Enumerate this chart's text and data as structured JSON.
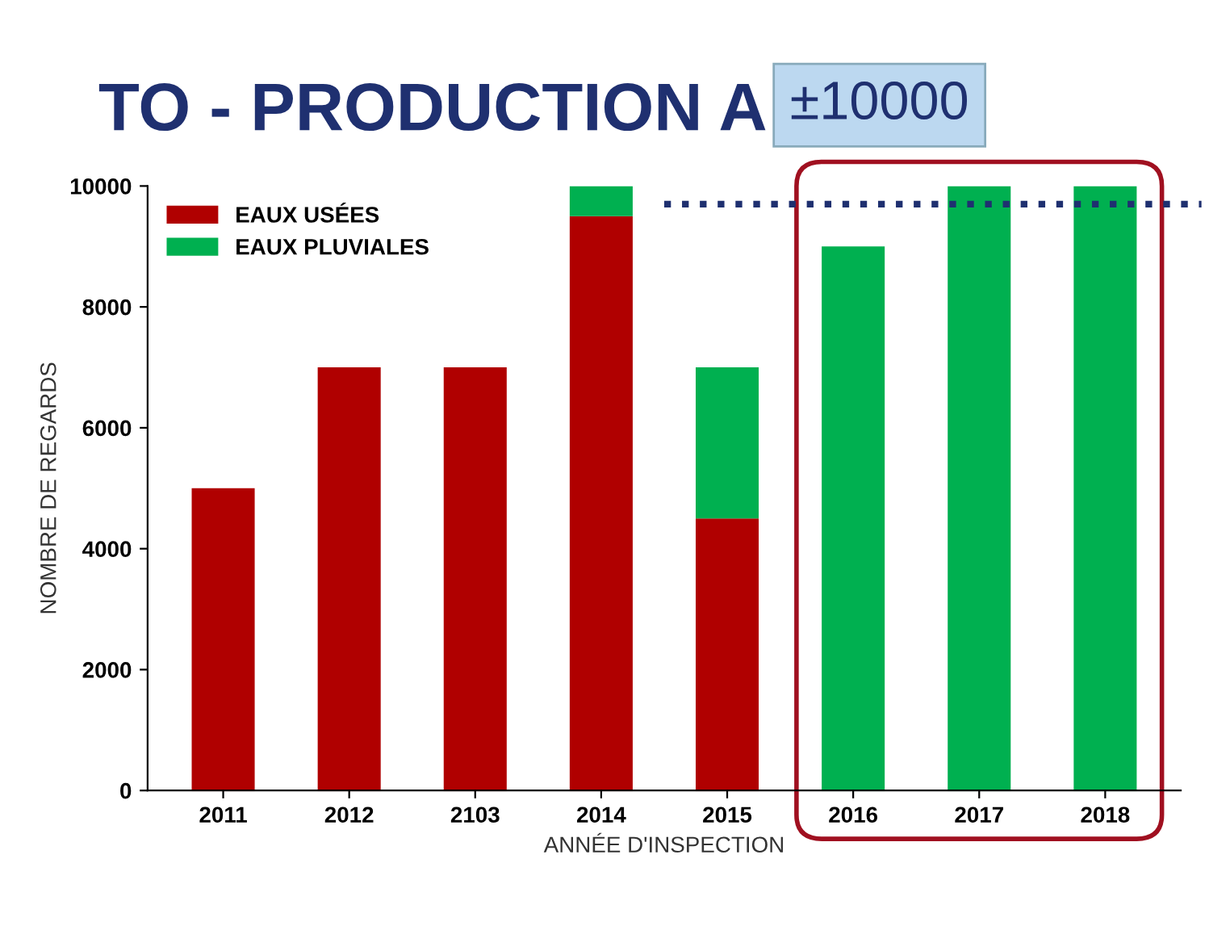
{
  "chart_data": {
    "type": "bar",
    "title": "TO - PRODUCTION A",
    "xlabel": "ANNÉE D'INSPECTION",
    "ylabel": "NOMBRE DE REGARDS",
    "categories": [
      "2011",
      "2012",
      "2103",
      "2014",
      "2015",
      "2016",
      "2017",
      "2018"
    ],
    "stacked": true,
    "series": [
      {
        "name": "EAUX USÉES",
        "color": "#b00000",
        "values": [
          5000,
          7000,
          7000,
          9500,
          4500,
          0,
          0,
          0
        ]
      },
      {
        "name": "EAUX PLUVIALES",
        "color": "#00b050",
        "values": [
          0,
          0,
          0,
          500,
          2500,
          9000,
          10000,
          10000
        ]
      }
    ],
    "ylim": [
      0,
      10000
    ],
    "yticks": [
      0,
      2000,
      4000,
      6000,
      8000,
      10000
    ],
    "ref_lines": [
      {
        "axis": "y",
        "value": 9700,
        "color": "#1f3070",
        "line_style": "dotted"
      }
    ],
    "annotations": [
      "±10000"
    ],
    "legend": "top left",
    "grid": false
  }
}
